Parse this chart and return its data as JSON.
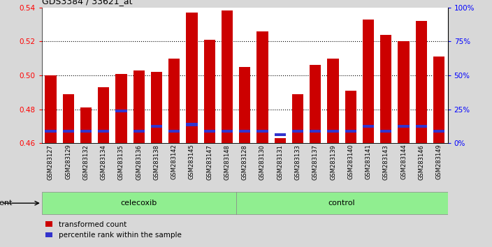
{
  "title": "GDS3384 / 33621_at",
  "samples": [
    "GSM283127",
    "GSM283129",
    "GSM283132",
    "GSM283134",
    "GSM283135",
    "GSM283136",
    "GSM283138",
    "GSM283142",
    "GSM283145",
    "GSM283147",
    "GSM283148",
    "GSM283128",
    "GSM283130",
    "GSM283131",
    "GSM283133",
    "GSM283137",
    "GSM283139",
    "GSM283140",
    "GSM283141",
    "GSM283143",
    "GSM283144",
    "GSM283146",
    "GSM283149"
  ],
  "transformed_count": [
    0.5,
    0.489,
    0.481,
    0.493,
    0.501,
    0.503,
    0.502,
    0.51,
    0.537,
    0.521,
    0.538,
    0.505,
    0.526,
    0.463,
    0.489,
    0.506,
    0.51,
    0.491,
    0.533,
    0.524,
    0.52,
    0.532,
    0.511
  ],
  "percentile_rank": [
    0.467,
    0.467,
    0.467,
    0.467,
    0.479,
    0.467,
    0.47,
    0.467,
    0.471,
    0.467,
    0.467,
    0.467,
    0.467,
    0.465,
    0.467,
    0.467,
    0.467,
    0.467,
    0.47,
    0.467,
    0.47,
    0.47,
    0.467
  ],
  "groups": [
    "celecoxib",
    "celecoxib",
    "celecoxib",
    "celecoxib",
    "celecoxib",
    "celecoxib",
    "celecoxib",
    "celecoxib",
    "celecoxib",
    "celecoxib",
    "celecoxib",
    "control",
    "control",
    "control",
    "control",
    "control",
    "control",
    "control",
    "control",
    "control",
    "control",
    "control",
    "control"
  ],
  "bar_color": "#CC0000",
  "blue_color": "#3333CC",
  "ymin": 0.46,
  "ymax": 0.54,
  "yticks": [
    0.46,
    0.48,
    0.5,
    0.52,
    0.54
  ],
  "right_yticks": [
    0,
    25,
    50,
    75,
    100
  ],
  "right_yticklabels": [
    "0%",
    "25%",
    "50%",
    "75%",
    "100%"
  ],
  "background_color": "#d8d8d8",
  "plot_bg": "#ffffff",
  "group_color": "#90EE90"
}
